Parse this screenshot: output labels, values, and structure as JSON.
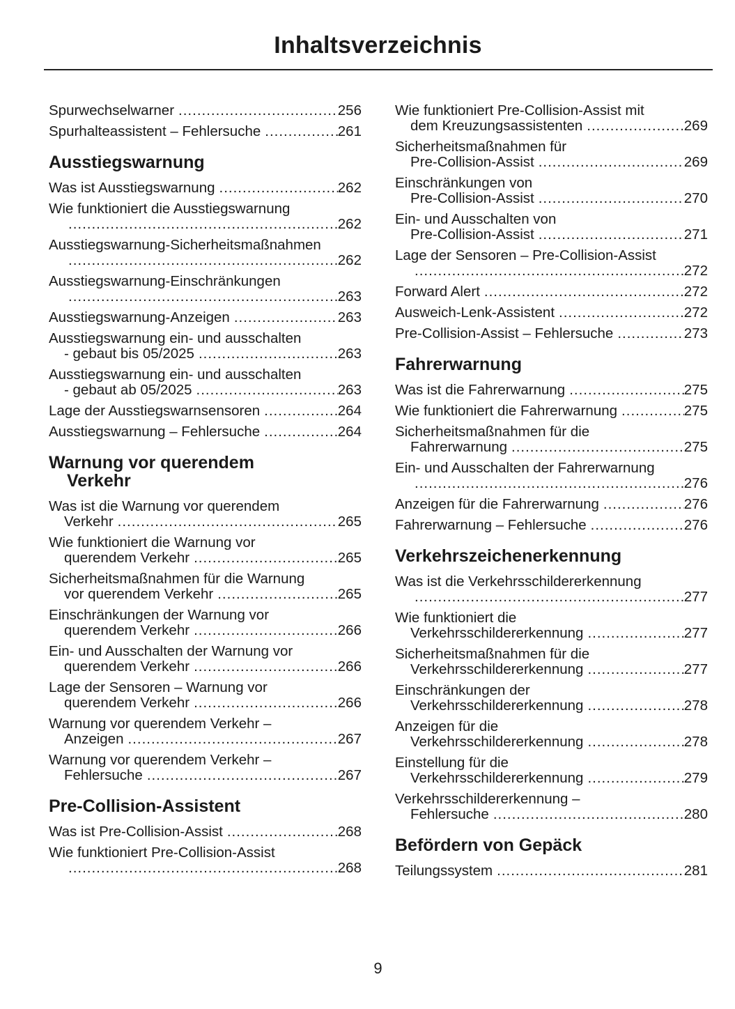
{
  "title": "Inhaltsverzeichnis",
  "page_number": "9",
  "columns": [
    {
      "items": [
        {
          "type": "entry",
          "lines": [
            "Spurwechselwarner"
          ],
          "page": "256"
        },
        {
          "type": "entry",
          "lines": [
            "Spurhalteassistent – Fehlersuche"
          ],
          "page": "261"
        },
        {
          "type": "heading",
          "lines": [
            "Ausstiegswarnung"
          ]
        },
        {
          "type": "entry",
          "lines": [
            "Was ist Ausstiegswarnung"
          ],
          "page": "262"
        },
        {
          "type": "entry",
          "lines": [
            "Wie funktioniert die Ausstiegswarnung",
            ""
          ],
          "page": "262"
        },
        {
          "type": "entry",
          "lines": [
            "Ausstiegswarnung-Sicherheitsmaßnahmen",
            ""
          ],
          "page": "262"
        },
        {
          "type": "entry",
          "lines": [
            "Ausstiegswarnung-Einschränkungen",
            ""
          ],
          "page": "263"
        },
        {
          "type": "entry",
          "lines": [
            "Ausstiegswarnung-Anzeigen"
          ],
          "page": "263"
        },
        {
          "type": "entry",
          "lines": [
            "Ausstiegswarnung ein- und ausschalten",
            "- gebaut bis 05/2025"
          ],
          "page": "263"
        },
        {
          "type": "entry",
          "lines": [
            "Ausstiegswarnung ein- und ausschalten",
            "- gebaut ab 05/2025"
          ],
          "page": "263"
        },
        {
          "type": "entry",
          "lines": [
            "Lage der Ausstiegswarnsensoren"
          ],
          "page": "264"
        },
        {
          "type": "entry",
          "lines": [
            "Ausstiegswarnung – Fehlersuche"
          ],
          "page": "264"
        },
        {
          "type": "heading",
          "lines": [
            "Warnung vor querendem",
            "Verkehr"
          ]
        },
        {
          "type": "entry",
          "lines": [
            "Was ist die Warnung vor querendem",
            "Verkehr"
          ],
          "page": "265"
        },
        {
          "type": "entry",
          "lines": [
            "Wie funktioniert die Warnung vor",
            "querendem Verkehr"
          ],
          "page": "265"
        },
        {
          "type": "entry",
          "lines": [
            "Sicherheitsmaßnahmen für die Warnung",
            "vor querendem Verkehr"
          ],
          "page": "265"
        },
        {
          "type": "entry",
          "lines": [
            "Einschränkungen der Warnung vor",
            "querendem Verkehr"
          ],
          "page": "266"
        },
        {
          "type": "entry",
          "lines": [
            "Ein- und Ausschalten der Warnung vor",
            "querendem Verkehr"
          ],
          "page": "266"
        },
        {
          "type": "entry",
          "lines": [
            "Lage der Sensoren – Warnung vor",
            "querendem Verkehr"
          ],
          "page": "266"
        },
        {
          "type": "entry",
          "lines": [
            "Warnung vor querendem Verkehr –",
            "Anzeigen"
          ],
          "page": "267"
        },
        {
          "type": "entry",
          "lines": [
            "Warnung vor querendem Verkehr –",
            "Fehlersuche"
          ],
          "page": "267"
        },
        {
          "type": "heading",
          "lines": [
            "Pre-Collision-Assistent"
          ]
        },
        {
          "type": "entry",
          "lines": [
            "Was ist Pre-Collision-Assist"
          ],
          "page": "268"
        },
        {
          "type": "entry",
          "lines": [
            "Wie funktioniert Pre-Collision-Assist",
            ""
          ],
          "page": "268"
        }
      ]
    },
    {
      "items": [
        {
          "type": "entry",
          "lines": [
            "Wie funktioniert Pre-Collision-Assist mit",
            "dem Kreuzungsassistenten"
          ],
          "page": "269"
        },
        {
          "type": "entry",
          "lines": [
            "Sicherheitsmaßnahmen für",
            "Pre-Collision-Assist"
          ],
          "page": "269"
        },
        {
          "type": "entry",
          "lines": [
            "Einschränkungen von",
            "Pre-Collision-Assist"
          ],
          "page": "270"
        },
        {
          "type": "entry",
          "lines": [
            "Ein- und Ausschalten von",
            "Pre-Collision-Assist"
          ],
          "page": "271"
        },
        {
          "type": "entry",
          "lines": [
            "Lage der Sensoren – Pre-Collision-Assist",
            ""
          ],
          "page": "272"
        },
        {
          "type": "entry",
          "lines": [
            "Forward Alert"
          ],
          "page": "272"
        },
        {
          "type": "entry",
          "lines": [
            "Ausweich-Lenk-Assistent"
          ],
          "page": "272"
        },
        {
          "type": "entry",
          "lines": [
            "Pre-Collision-Assist – Fehlersuche"
          ],
          "page": "273"
        },
        {
          "type": "heading",
          "lines": [
            "Fahrerwarnung"
          ]
        },
        {
          "type": "entry",
          "lines": [
            "Was ist die Fahrerwarnung"
          ],
          "page": "275"
        },
        {
          "type": "entry",
          "lines": [
            "Wie funktioniert die Fahrerwarnung"
          ],
          "page": "275"
        },
        {
          "type": "entry",
          "lines": [
            "Sicherheitsmaßnahmen für die",
            "Fahrerwarnung"
          ],
          "page": "275"
        },
        {
          "type": "entry",
          "lines": [
            "Ein- und Ausschalten der Fahrerwarnung",
            ""
          ],
          "page": "276"
        },
        {
          "type": "entry",
          "lines": [
            "Anzeigen für die Fahrerwarnung"
          ],
          "page": "276"
        },
        {
          "type": "entry",
          "lines": [
            "Fahrerwarnung – Fehlersuche"
          ],
          "page": "276"
        },
        {
          "type": "heading",
          "lines": [
            "Verkehrszeichenerkennung"
          ]
        },
        {
          "type": "entry",
          "lines": [
            "Was ist die Verkehrsschildererkennung",
            ""
          ],
          "page": "277"
        },
        {
          "type": "entry",
          "lines": [
            "Wie funktioniert die",
            "Verkehrsschildererkennung"
          ],
          "page": "277"
        },
        {
          "type": "entry",
          "lines": [
            "Sicherheitsmaßnahmen für die",
            "Verkehrsschildererkennung"
          ],
          "page": "277"
        },
        {
          "type": "entry",
          "lines": [
            "Einschränkungen der",
            "Verkehrsschildererkennung"
          ],
          "page": "278"
        },
        {
          "type": "entry",
          "lines": [
            "Anzeigen für die",
            "Verkehrsschildererkennung"
          ],
          "page": "278"
        },
        {
          "type": "entry",
          "lines": [
            "Einstellung für die",
            "Verkehrsschildererkennung"
          ],
          "page": "279"
        },
        {
          "type": "entry",
          "lines": [
            "Verkehrsschildererkennung –",
            "Fehlersuche"
          ],
          "page": "280"
        },
        {
          "type": "heading",
          "lines": [
            "Befördern von Gepäck"
          ]
        },
        {
          "type": "entry",
          "lines": [
            "Teilungssystem"
          ],
          "page": "281"
        }
      ]
    }
  ]
}
